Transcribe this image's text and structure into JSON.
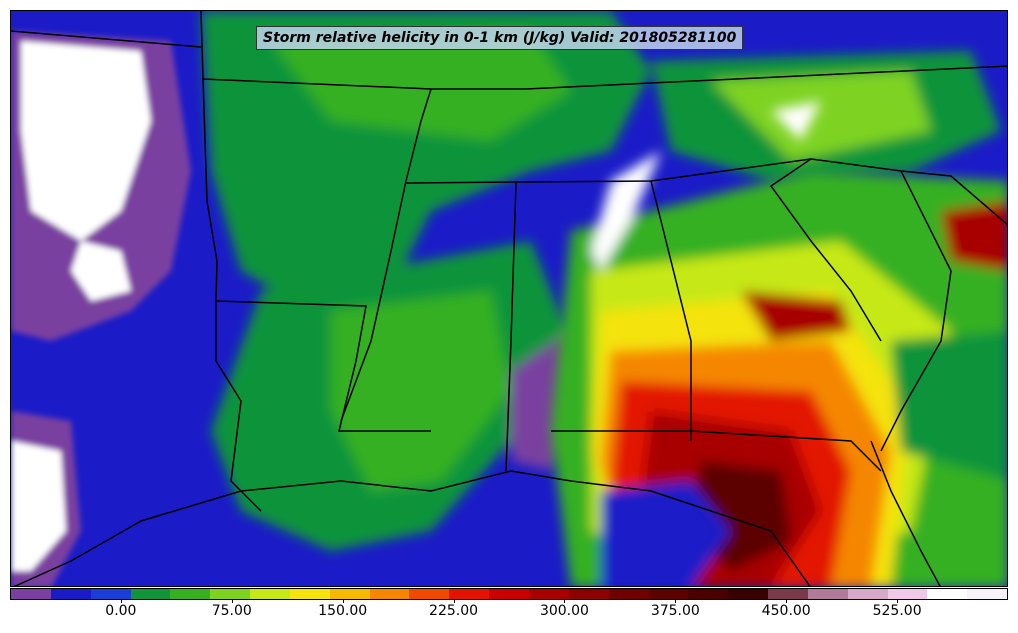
{
  "title": "Storm relative helicity in 0-1 km (J/kg) Valid: 201805281100",
  "colorbar": {
    "colors": [
      "#7a3fa0",
      "#1b1bc8",
      "#1a3fd6",
      "#11943a",
      "#36b020",
      "#7ed321",
      "#c6e817",
      "#f4e30c",
      "#f7b800",
      "#f58700",
      "#f04a00",
      "#e31300",
      "#c80000",
      "#a80000",
      "#8c0000",
      "#700000",
      "#5c0000",
      "#4a0000",
      "#380000",
      "#7a3a4a",
      "#b07a98",
      "#d8a8c8",
      "#f0c8e8",
      "#ffffff",
      "#f7f2f7"
    ],
    "tick_labels": [
      "0.00",
      "75.00",
      "150.00",
      "225.00",
      "300.00",
      "375.00",
      "450.00",
      "525.00"
    ],
    "tick_values": [
      0,
      75,
      150,
      225,
      300,
      375,
      450,
      525
    ],
    "min": -75,
    "max": 600
  },
  "icons": {
    "map": "shaded-helicity-map"
  }
}
